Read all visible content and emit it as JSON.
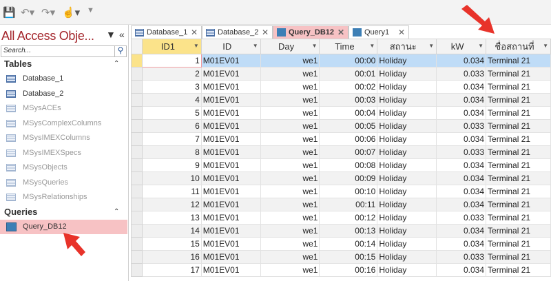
{
  "toolbar": {
    "icons": [
      "save-icon",
      "undo-icon",
      "redo-icon",
      "touch-mode-icon",
      "customize-qat-icon"
    ]
  },
  "nav": {
    "title": "All Access Obje...",
    "search_placeholder": "Search...",
    "groups": [
      {
        "label": "Tables",
        "items": [
          {
            "label": "Database_1",
            "system": false
          },
          {
            "label": "Database_2",
            "system": false
          },
          {
            "label": "MSysACEs",
            "system": true
          },
          {
            "label": "MSysComplexColumns",
            "system": true
          },
          {
            "label": "MSysIMEXColumns",
            "system": true
          },
          {
            "label": "MSysIMEXSpecs",
            "system": true
          },
          {
            "label": "MSysObjects",
            "system": true
          },
          {
            "label": "MSysQueries",
            "system": true
          },
          {
            "label": "MSysRelationships",
            "system": true
          }
        ]
      },
      {
        "label": "Queries",
        "items": [
          {
            "label": "Query_DB12",
            "selected": true
          }
        ]
      }
    ]
  },
  "tabs": [
    {
      "label": "Database_1",
      "type": "table"
    },
    {
      "label": "Database_2",
      "type": "table"
    },
    {
      "label": "Query_DB12",
      "type": "query",
      "active": true
    },
    {
      "label": "Query1",
      "type": "query"
    }
  ],
  "grid": {
    "columns": [
      "ID1",
      "ID",
      "Day",
      "Time",
      "สถานะ",
      "kW",
      "ชื่อสถานที่"
    ],
    "rows": [
      [
        "1",
        "M01EV01",
        "we1",
        "00:00",
        "Holiday",
        "0.034",
        "Terminal 21"
      ],
      [
        "2",
        "M01EV01",
        "we1",
        "00:01",
        "Holiday",
        "0.033",
        "Terminal 21"
      ],
      [
        "3",
        "M01EV01",
        "we1",
        "00:02",
        "Holiday",
        "0.034",
        "Terminal 21"
      ],
      [
        "4",
        "M01EV01",
        "we1",
        "00:03",
        "Holiday",
        "0.034",
        "Terminal 21"
      ],
      [
        "5",
        "M01EV01",
        "we1",
        "00:04",
        "Holiday",
        "0.034",
        "Terminal 21"
      ],
      [
        "6",
        "M01EV01",
        "we1",
        "00:05",
        "Holiday",
        "0.033",
        "Terminal 21"
      ],
      [
        "7",
        "M01EV01",
        "we1",
        "00:06",
        "Holiday",
        "0.034",
        "Terminal 21"
      ],
      [
        "8",
        "M01EV01",
        "we1",
        "00:07",
        "Holiday",
        "0.033",
        "Terminal 21"
      ],
      [
        "9",
        "M01EV01",
        "we1",
        "00:08",
        "Holiday",
        "0.034",
        "Terminal 21"
      ],
      [
        "10",
        "M01EV01",
        "we1",
        "00:09",
        "Holiday",
        "0.034",
        "Terminal 21"
      ],
      [
        "11",
        "M01EV01",
        "we1",
        "00:10",
        "Holiday",
        "0.034",
        "Terminal 21"
      ],
      [
        "12",
        "M01EV01",
        "we1",
        "00:11",
        "Holiday",
        "0.034",
        "Terminal 21"
      ],
      [
        "13",
        "M01EV01",
        "we1",
        "00:12",
        "Holiday",
        "0.033",
        "Terminal 21"
      ],
      [
        "14",
        "M01EV01",
        "we1",
        "00:13",
        "Holiday",
        "0.034",
        "Terminal 21"
      ],
      [
        "15",
        "M01EV01",
        "we1",
        "00:14",
        "Holiday",
        "0.034",
        "Terminal 21"
      ],
      [
        "16",
        "M01EV01",
        "we1",
        "00:15",
        "Holiday",
        "0.033",
        "Terminal 21"
      ],
      [
        "17",
        "M01EV01",
        "we1",
        "00:16",
        "Holiday",
        "0.034",
        "Terminal 21"
      ]
    ]
  },
  "colors": {
    "accent": "#a4262c",
    "selection": "#f7c2c4",
    "current_row": "#bfdcf7",
    "arrow": "#e8332a"
  }
}
